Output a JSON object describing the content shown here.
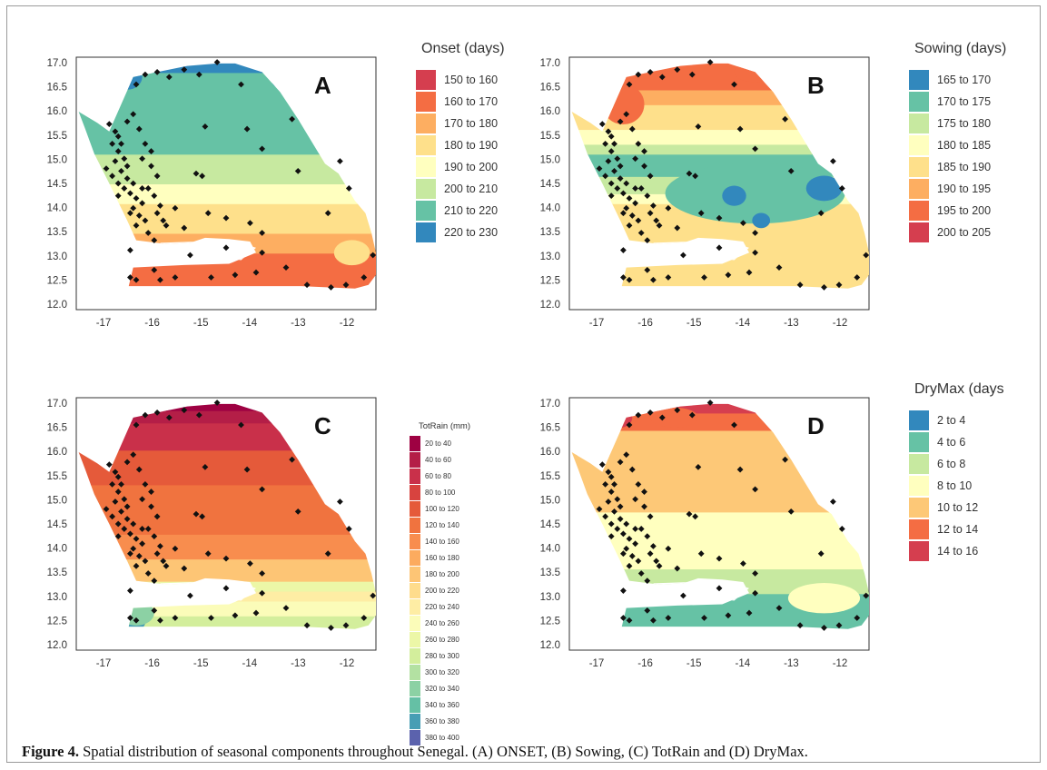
{
  "figure": {
    "caption_label": "Figure 4.",
    "caption_text": " Spatial distribution of seasonal components throughout Senegal. (A) ONSET, (B) Sowing, (C) TotRain and (D) DryMax."
  },
  "chart_data": [
    {
      "type": "heatmap",
      "panel_letter": "A",
      "legend_title": "Onset (days)",
      "x_ticks": [
        "-17",
        "-16",
        "-15",
        "-14",
        "-13",
        "-12"
      ],
      "y_ticks": [
        "17.0",
        "16.5",
        "16.0",
        "15.5",
        "15.0",
        "14.5",
        "14.0",
        "13.5",
        "13.0",
        "12.5",
        "12.0"
      ],
      "xlim": [
        -17.6,
        -11.6
      ],
      "ylim": [
        12.0,
        17.0
      ],
      "classes": [
        {
          "label": "150 to 160",
          "color": "#d53e4f"
        },
        {
          "label": "160 to 170",
          "color": "#f46d43"
        },
        {
          "label": "170 to 180",
          "color": "#fdae61"
        },
        {
          "label": "180 to 190",
          "color": "#fee08b"
        },
        {
          "label": "190 to 200",
          "color": "#ffffbf"
        },
        {
          "label": "200 to 210",
          "color": "#c7e9a0"
        },
        {
          "label": "210 to 220",
          "color": "#66c2a5"
        },
        {
          "label": "220 to 230",
          "color": "#3288bd"
        }
      ]
    },
    {
      "type": "heatmap",
      "panel_letter": "B",
      "legend_title": "Sowing (days)",
      "x_ticks": [
        "-17",
        "-16",
        "-15",
        "-14",
        "-13",
        "-12"
      ],
      "y_ticks": [
        "17.0",
        "16.5",
        "16.0",
        "15.5",
        "15.0",
        "14.5",
        "14.0",
        "13.5",
        "13.0",
        "12.5",
        "12.0"
      ],
      "xlim": [
        -17.6,
        -11.6
      ],
      "ylim": [
        12.0,
        17.0
      ],
      "classes": [
        {
          "label": "165 to 170",
          "color": "#3288bd"
        },
        {
          "label": "170 to 175",
          "color": "#66c2a5"
        },
        {
          "label": "175 to 180",
          "color": "#c7e9a0"
        },
        {
          "label": "180 to 185",
          "color": "#ffffbf"
        },
        {
          "label": "185 to 190",
          "color": "#fee08b"
        },
        {
          "label": "190 to 195",
          "color": "#fdae61"
        },
        {
          "label": "195 to 200",
          "color": "#f46d43"
        },
        {
          "label": "200 to 205",
          "color": "#d53e4f"
        }
      ]
    },
    {
      "type": "heatmap",
      "panel_letter": "C",
      "legend_title": "TotRain (mm)",
      "x_ticks": [
        "-17",
        "-16",
        "-15",
        "-14",
        "-13",
        "-12"
      ],
      "y_ticks": [
        "17.0",
        "16.5",
        "16.0",
        "15.5",
        "15.0",
        "14.5",
        "14.0",
        "13.5",
        "13.0",
        "12.5",
        "12.0"
      ],
      "xlim": [
        -17.6,
        -11.6
      ],
      "ylim": [
        12.0,
        17.0
      ],
      "classes": [
        {
          "label": "20 to 40",
          "color": "#9e0142"
        },
        {
          "label": "40 to 60",
          "color": "#b41e47"
        },
        {
          "label": "60 to 80",
          "color": "#c9304a"
        },
        {
          "label": "80 to 100",
          "color": "#d8433f"
        },
        {
          "label": "100 to 120",
          "color": "#e55a3a"
        },
        {
          "label": "120 to 140",
          "color": "#f0733f"
        },
        {
          "label": "140 to 160",
          "color": "#f88d4e"
        },
        {
          "label": "160 to 180",
          "color": "#fcab5f"
        },
        {
          "label": "180 to 200",
          "color": "#fdc575"
        },
        {
          "label": "200 to 220",
          "color": "#fedc8c"
        },
        {
          "label": "220 to 240",
          "color": "#feeda4"
        },
        {
          "label": "240 to 260",
          "color": "#fbfcb9"
        },
        {
          "label": "260 to 280",
          "color": "#ecf7a7"
        },
        {
          "label": "280 to 300",
          "color": "#d3ee9c"
        },
        {
          "label": "300 to 320",
          "color": "#b3e1a2"
        },
        {
          "label": "320 to 340",
          "color": "#8cd1a4"
        },
        {
          "label": "340 to 360",
          "color": "#65c0a5"
        },
        {
          "label": "360 to 380",
          "color": "#479eb4"
        },
        {
          "label": "380 to 400",
          "color": "#5b62ad"
        }
      ]
    },
    {
      "type": "heatmap",
      "panel_letter": "D",
      "legend_title": "DryMax (days",
      "x_ticks": [
        "-17",
        "-16",
        "-15",
        "-14",
        "-13",
        "-12"
      ],
      "y_ticks": [
        "17.0",
        "16.5",
        "16.0",
        "15.5",
        "15.0",
        "14.5",
        "14.0",
        "13.5",
        "13.0",
        "12.5",
        "12.0"
      ],
      "xlim": [
        -17.6,
        -11.6
      ],
      "ylim": [
        12.0,
        17.0
      ],
      "classes": [
        {
          "label": "2 to 4",
          "color": "#3288bd"
        },
        {
          "label": "4 to 6",
          "color": "#66c2a5"
        },
        {
          "label": "6 to 8",
          "color": "#c7e9a0"
        },
        {
          "label": "8 to 10",
          "color": "#ffffbf"
        },
        {
          "label": "10 to 12",
          "color": "#fdc877"
        },
        {
          "label": "12 to 14",
          "color": "#f46d43"
        },
        {
          "label": "14 to 16",
          "color": "#d53e4f"
        }
      ]
    }
  ]
}
